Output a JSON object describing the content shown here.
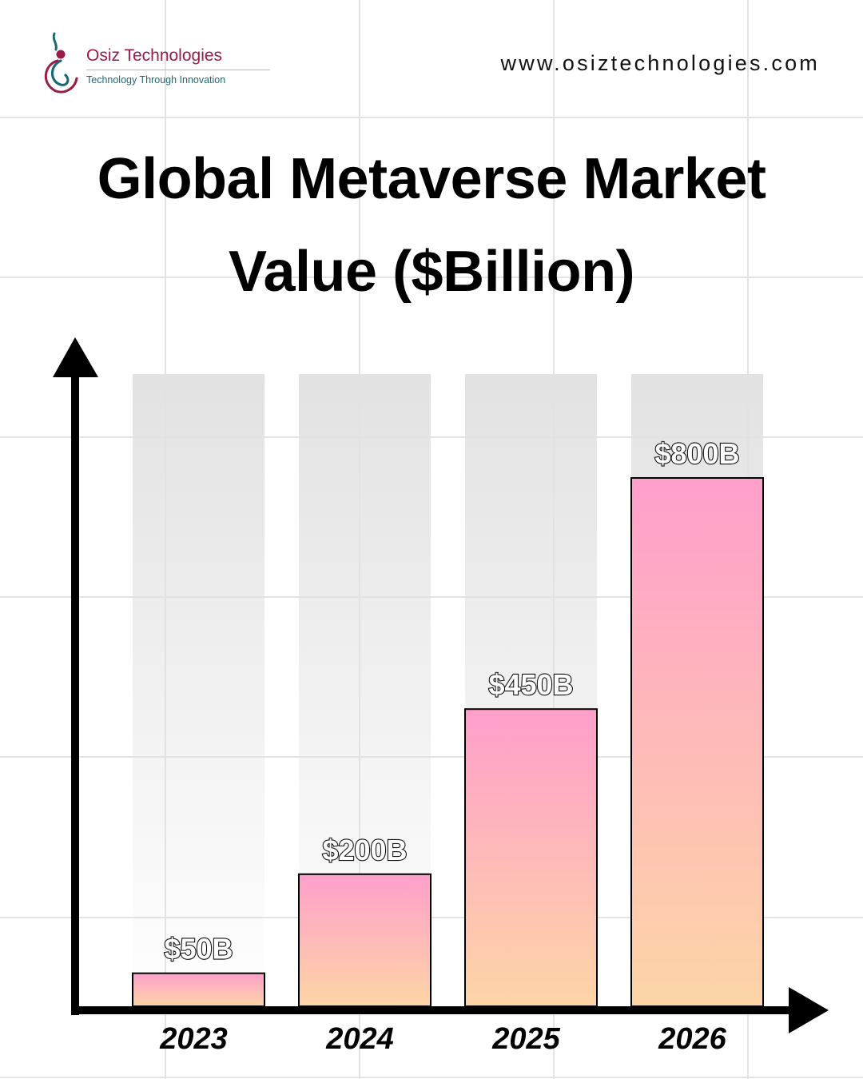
{
  "header": {
    "brand_name": "Osiz Technologies",
    "brand_tagline": "Technology Through Innovation",
    "website": "www.osiztechnologies.com"
  },
  "title_lines": [
    "Global Metaverse Market",
    "Value ($Billion)"
  ],
  "colors": {
    "bar_top": "#ff9fcb",
    "bar_bottom": "#fdd5a6",
    "ghost_bar": "#e2e2e2",
    "axis": "#000000",
    "brand": "#9b1b4b",
    "tagline": "#1e6a72"
  },
  "chart_data": {
    "type": "bar",
    "title": "Global Metaverse Market Value ($Billion)",
    "categories": [
      "2023",
      "2024",
      "2025",
      "2026"
    ],
    "values": [
      50,
      200,
      450,
      800
    ],
    "data_labels": [
      "$50B",
      "$200B",
      "$450B",
      "$800B"
    ],
    "unit": "$Billion",
    "xlabel": "",
    "ylabel": "",
    "grid": true,
    "legend": "none"
  }
}
